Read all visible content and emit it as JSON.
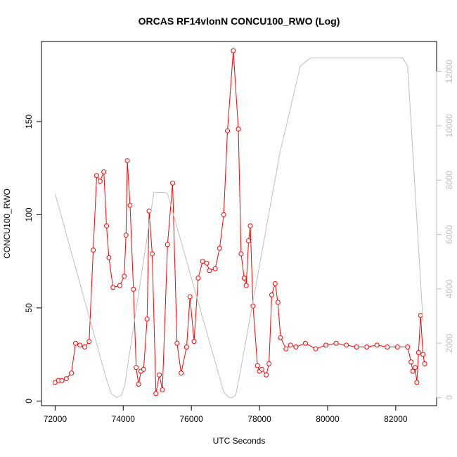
{
  "chart_data": {
    "type": "line",
    "title": "ORCAS RF14vlonN CONCU100_RWO (Log)",
    "xlabel": "UTC Seconds",
    "ylabel": "CONCU100_RWO",
    "xlim": [
      71600,
      83200
    ],
    "ylim": [
      -2.5,
      193
    ],
    "y2lim": [
      -300,
      13100
    ],
    "x_ticks": [
      72000,
      74000,
      76000,
      78000,
      80000,
      82000
    ],
    "y_ticks": [
      0,
      50,
      100,
      150
    ],
    "y2_ticks": [
      0,
      2000,
      4000,
      6000,
      8000,
      10000,
      12000
    ],
    "colors": {
      "primary": "#ff0000",
      "secondary": "#bebebe",
      "frame": "#000000"
    },
    "series": [
      {
        "axis": "left",
        "x": [
          72000,
          72100,
          72200,
          72330,
          72480,
          72600,
          72730,
          72870,
          73000,
          73120,
          73220,
          73320,
          73430,
          73510,
          73580,
          73700,
          73900,
          74030,
          74080,
          74120,
          74200,
          74300,
          74380,
          74450,
          74520,
          74600,
          74700,
          74760,
          74850,
          74960,
          75060,
          75150,
          75300,
          75450,
          75580,
          75700,
          75860,
          75960,
          76080,
          76200,
          76330,
          76450,
          76530,
          76700,
          76830,
          76950,
          77060,
          77230,
          77380,
          77460,
          77550,
          77610,
          77680,
          77730,
          77810,
          77940,
          78000,
          78070,
          78200,
          78280,
          78360,
          78460,
          78540,
          78620,
          78780,
          78910,
          79070,
          79350,
          79650,
          79950,
          80250,
          80550,
          80850,
          81150,
          81450,
          81750,
          82050,
          82350,
          82450,
          82500,
          82570,
          82620,
          82670,
          82730,
          82800,
          82850
        ],
        "y": [
          10,
          11,
          11,
          12,
          15,
          31,
          30,
          29,
          32,
          81,
          121,
          118,
          123,
          94,
          77,
          61,
          62,
          67,
          89,
          129,
          105,
          60,
          18,
          9,
          16,
          17,
          44,
          102,
          79,
          4,
          14,
          6,
          84,
          117,
          31,
          15,
          29,
          56,
          32,
          66,
          75,
          74,
          70,
          71,
          82,
          100,
          145,
          188,
          146,
          79,
          66,
          62,
          86,
          94,
          51,
          19,
          16,
          17,
          14,
          20,
          57,
          63,
          53,
          34,
          28,
          30,
          29,
          31,
          28,
          30,
          31,
          30,
          29,
          29,
          30,
          29,
          29,
          29,
          21,
          16,
          18,
          10,
          26,
          46,
          25,
          20
        ]
      },
      {
        "axis": "right",
        "x": [
          72000,
          73500,
          73650,
          73800,
          73950,
          74050,
          74900,
          75000,
          75200,
          75300,
          76950,
          77100,
          77200,
          77300,
          77400,
          78600,
          79200,
          79500,
          81400,
          82200,
          82350,
          82800
        ],
        "y": [
          7500,
          700,
          150,
          0,
          80,
          500,
          7550,
          7550,
          7550,
          7500,
          200,
          0,
          0,
          80,
          700,
          9000,
          12200,
          12500,
          12500,
          12500,
          12200,
          2800
        ]
      }
    ]
  }
}
